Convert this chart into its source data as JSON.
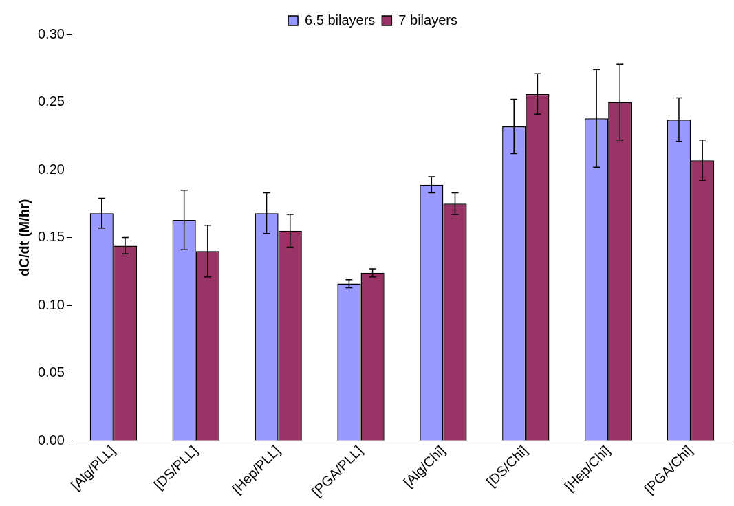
{
  "chart_data": {
    "type": "bar",
    "ylabel": "dC/dt (M/hr)",
    "categories": [
      "[Alg/PLL]",
      "[DS/PLL]",
      "[Hep/PLL]",
      "[PGA/PLL]",
      "[Alg/Chi]",
      "[DS/Chi]",
      "[Hep/Chi]",
      "[PGA/Chi]"
    ],
    "series": [
      {
        "name": "6.5 bilayers",
        "color": "#9999ff",
        "values": [
          0.168,
          0.163,
          0.168,
          0.116,
          0.189,
          0.232,
          0.238,
          0.237
        ],
        "errors": [
          0.011,
          0.022,
          0.015,
          0.003,
          0.006,
          0.02,
          0.036,
          0.016
        ]
      },
      {
        "name": "7 bilayers",
        "color": "#993366",
        "values": [
          0.144,
          0.14,
          0.155,
          0.124,
          0.175,
          0.256,
          0.25,
          0.207
        ],
        "errors": [
          0.006,
          0.019,
          0.012,
          0.003,
          0.008,
          0.015,
          0.028,
          0.015
        ]
      }
    ],
    "ylim": [
      0,
      0.3
    ],
    "yticks": [
      {
        "value": 0,
        "label": "0.00"
      },
      {
        "value": 0.05,
        "label": "0.05"
      },
      {
        "value": 0.1,
        "label": "0.10"
      },
      {
        "value": 0.15,
        "label": "0.15"
      },
      {
        "value": 0.2,
        "label": "0.20"
      },
      {
        "value": 0.25,
        "label": "0.25"
      },
      {
        "value": 0.3,
        "label": "0.30"
      }
    ],
    "grid": false,
    "legend": "top"
  }
}
